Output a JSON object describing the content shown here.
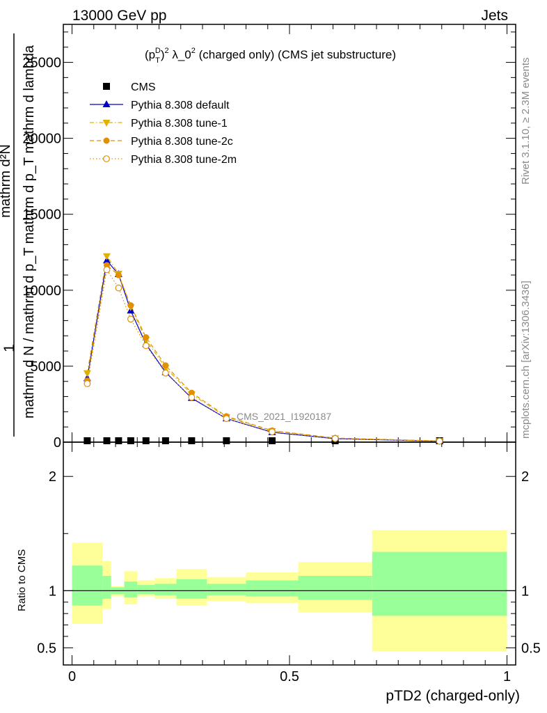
{
  "header": {
    "energy": "13000 GeV pp",
    "process": "Jets"
  },
  "side_labels": {
    "rivet": "Rivet 3.1.10, ≥ 2.3M events",
    "mcplots": "mcplots.cern.ch [arXiv:1306.3436]"
  },
  "watermark": "CMS_2021_I1920187",
  "chart_data": {
    "type": "line",
    "title": "(p_T^D)^2 λ_0^2 (charged only) (CMS jet substructure)",
    "title_parts": {
      "p": "(p",
      "sup_d": "D",
      "sub_t": "T",
      "paren": ")",
      "sup_2": "2",
      "lambda": " λ_0",
      "sup_2b": "2",
      "rest": " (charged only) (CMS jet substructure)"
    },
    "xlabel": "pTD2 (charged-only)",
    "ylabel_lines": [
      "1",
      "mathrm d N / mathrm d p_T mathrm d p_T mathrm d lambda",
      "mathrm d²N"
    ],
    "ylabel": "1 / mathrm dN / mathrm d p_T mathrm d p_T mathrm d lambda  mathrm d^2N",
    "ratio_ylabel": "Ratio to CMS",
    "xlim": [
      -0.02,
      1.02
    ],
    "ylim": [
      0,
      27500
    ],
    "ratio_ylim": [
      0.35,
      2.3
    ],
    "x_ticks": [
      0,
      0.5,
      1
    ],
    "x_tick_labels": [
      "0",
      "0.5",
      "1"
    ],
    "y_ticks": [
      0,
      5000,
      10000,
      15000,
      20000,
      25000
    ],
    "y_tick_labels": [
      "0",
      "5000",
      "10000",
      "15000",
      "20000",
      "25000"
    ],
    "ratio_ticks": [
      0.5,
      1,
      2
    ],
    "ratio_tick_labels": [
      "0.5",
      "1",
      "2"
    ],
    "legend_position": "top-left",
    "x": [
      0.035,
      0.08,
      0.107,
      0.135,
      0.17,
      0.215,
      0.275,
      0.355,
      0.46,
      0.605,
      0.845
    ],
    "series": [
      {
        "name": "CMS",
        "color": "#000000",
        "marker": "square",
        "values": [
          40,
          60,
          80,
          80,
          60,
          40,
          30,
          20,
          10,
          5,
          2
        ]
      },
      {
        "name": "Pythia 8.308 default",
        "color": "#0000cc",
        "marker": "triangle-up",
        "line": "solid",
        "values": [
          4200,
          11950,
          11050,
          8650,
          6450,
          4600,
          2900,
          1550,
          650,
          230,
          60
        ]
      },
      {
        "name": "Pythia 8.308 tune-1",
        "color": "#e0b000",
        "marker": "triangle-down",
        "line": "dashdot",
        "values": [
          4550,
          12250,
          11100,
          8900,
          6750,
          4900,
          3150,
          1650,
          740,
          260,
          75
        ]
      },
      {
        "name": "Pythia 8.308 tune-2c",
        "color": "#e09000",
        "marker": "circle",
        "line": "dashed",
        "values": [
          4050,
          11650,
          11000,
          9000,
          6900,
          5050,
          3250,
          1700,
          760,
          270,
          80
        ]
      },
      {
        "name": "Pythia 8.308 tune-2m",
        "color": "#e09000",
        "marker": "circle-open",
        "line": "dotted",
        "values": [
          3850,
          11350,
          10150,
          8100,
          6350,
          4550,
          2950,
          1550,
          680,
          240,
          65
        ]
      }
    ],
    "ratio_bands": [
      {
        "x0": 0.0,
        "x1": 0.07,
        "yellow": [
          0.71,
          1.42
        ],
        "green": [
          0.87,
          1.22
        ]
      },
      {
        "x0": 0.07,
        "x1": 0.09,
        "yellow": [
          0.84,
          1.26
        ],
        "green": [
          0.93,
          1.13
        ]
      },
      {
        "x0": 0.09,
        "x1": 0.12,
        "yellow": [
          0.95,
          1.04
        ],
        "green": [
          0.97,
          1.03
        ]
      },
      {
        "x0": 0.12,
        "x1": 0.15,
        "yellow": [
          0.88,
          1.17
        ],
        "green": [
          0.94,
          1.08
        ]
      },
      {
        "x0": 0.15,
        "x1": 0.19,
        "yellow": [
          0.95,
          1.09
        ],
        "green": [
          0.97,
          1.05
        ]
      },
      {
        "x0": 0.19,
        "x1": 0.24,
        "yellow": [
          0.93,
          1.11
        ],
        "green": [
          0.96,
          1.06
        ]
      },
      {
        "x0": 0.24,
        "x1": 0.31,
        "yellow": [
          0.87,
          1.19
        ],
        "green": [
          0.93,
          1.1
        ]
      },
      {
        "x0": 0.31,
        "x1": 0.4,
        "yellow": [
          0.91,
          1.12
        ],
        "green": [
          0.96,
          1.06
        ]
      },
      {
        "x0": 0.4,
        "x1": 0.52,
        "yellow": [
          0.89,
          1.16
        ],
        "green": [
          0.95,
          1.09
        ]
      },
      {
        "x0": 0.52,
        "x1": 0.69,
        "yellow": [
          0.81,
          1.25
        ],
        "green": [
          0.92,
          1.13
        ]
      },
      {
        "x0": 0.69,
        "x1": 1.0,
        "yellow": [
          0.47,
          1.53
        ],
        "green": [
          0.78,
          1.34
        ]
      }
    ]
  }
}
